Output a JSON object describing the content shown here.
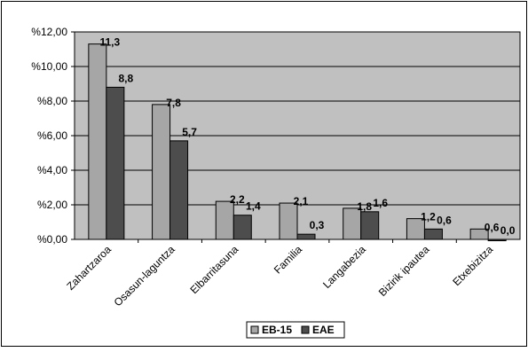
{
  "chart_data": {
    "type": "bar",
    "categories": [
      "Zahartzaroa",
      "Osasun-laguntza",
      "Elbarritasuna",
      "Familia",
      "Langabezia",
      "Bizirik iраutea",
      "Etxebizitza"
    ],
    "series": [
      {
        "name": "EB-15",
        "values": [
          11.3,
          7.8,
          2.2,
          2.1,
          1.8,
          1.2,
          0.6
        ],
        "labels": [
          "11,3",
          "7,8",
          "2,2",
          "2,1",
          "1,8",
          "1,2",
          "0,6"
        ]
      },
      {
        "name": "EAE",
        "values": [
          8.8,
          5.7,
          1.4,
          0.3,
          1.6,
          0.6,
          0.0
        ],
        "labels": [
          "8,8",
          "5,7",
          "1,4",
          "0,3",
          "1,6",
          "0,6",
          "0,0"
        ]
      }
    ],
    "yticks": [
      "%0,00",
      "%2,00",
      "%4,00",
      "%6,00",
      "%8,00",
      "%10,00",
      "%12,00"
    ],
    "ylim": [
      0,
      12
    ],
    "grid": true,
    "legend_position": "bottom-center",
    "colors": {
      "plot_bg": "#c0c0c0",
      "EB-15": "#a6a6a6",
      "EAE": "#4d4d4d",
      "edge": "#000000"
    }
  }
}
